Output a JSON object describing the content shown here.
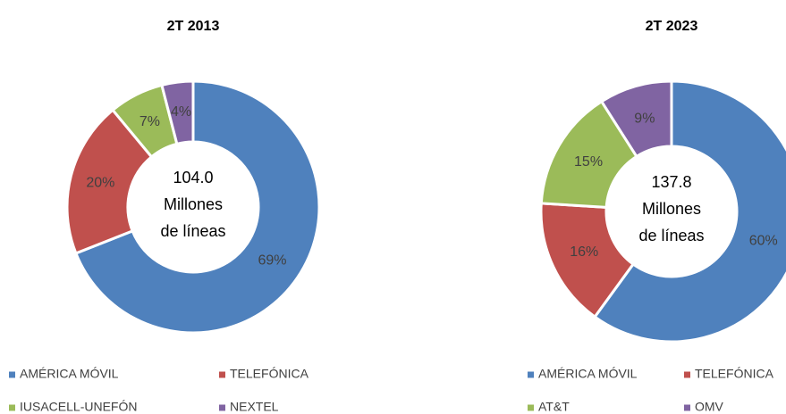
{
  "chart_data": [
    {
      "type": "donut",
      "title": "2T 2013",
      "center_text": [
        "104.0",
        "Millones",
        "de líneas"
      ],
      "categories": [
        "AMÉRICA MÓVIL",
        "TELEFÓNICA",
        "IUSACELL-UNEFÓN",
        "NEXTEL"
      ],
      "values": [
        69,
        20,
        7,
        4
      ],
      "value_labels": [
        "69%",
        "20%",
        "7%",
        "4%"
      ],
      "colors": [
        "#4f81bd",
        "#c0504d",
        "#9bbb59",
        "#8064a2"
      ],
      "legend": "bottom"
    },
    {
      "type": "donut",
      "title": "2T 2023",
      "center_text": [
        "137.8",
        "Millones",
        "de líneas"
      ],
      "categories": [
        "AMÉRICA MÓVIL",
        "TELEFÓNICA",
        "AT&T",
        "OMV"
      ],
      "values": [
        60,
        16,
        15,
        9
      ],
      "value_labels": [
        "60%",
        "16%",
        "15%",
        "9%"
      ],
      "colors": [
        "#4f81bd",
        "#c0504d",
        "#9bbb59",
        "#8064a2"
      ],
      "legend": "bottom"
    }
  ]
}
